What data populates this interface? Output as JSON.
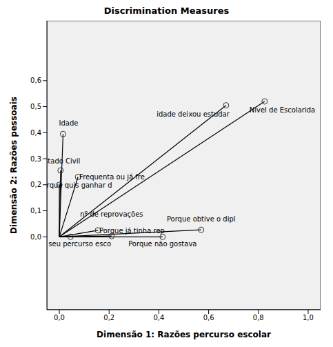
{
  "chart_data": {
    "type": "scatter",
    "title": "Discrimination Measures",
    "x_label": "Dimensão 1: Razões percurso escolar",
    "y_label": "Dimensão 2: Razões pessoais",
    "points": [
      {
        "label": "Idade",
        "x": 0.015,
        "y": 0.395
      },
      {
        "label": "Estado Civil",
        "x": 0.005,
        "y": 0.255
      },
      {
        "label": "Porque quis ganhar d",
        "x": 0.0,
        "y": 0.2
      },
      {
        "label": "Frequenta ou já fre",
        "x": 0.075,
        "y": 0.23
      },
      {
        "label": "idade deixou estudar",
        "x": 0.67,
        "y": 0.505
      },
      {
        "label": "Nível de Escolarida",
        "x": 0.825,
        "y": 0.52
      },
      {
        "label": "nº de reprovações",
        "x": 0.21,
        "y": 0.003
      },
      {
        "label": "Porque já tinha rep",
        "x": 0.155,
        "y": 0.025
      },
      {
        "label": "Porque obtive o dipl",
        "x": 0.57,
        "y": 0.027
      },
      {
        "label": "Porque não gostava",
        "x": 0.415,
        "y": 0.0
      },
      {
        "label": "No seu percurso esco",
        "x": 0.045,
        "y": 0.0
      }
    ],
    "xlim": [
      -0.05,
      1.05
    ],
    "ylim": [
      -0.28,
      0.83
    ],
    "xticks": [
      {
        "value": 0,
        "label": "0,0"
      },
      {
        "value": 0.2,
        "label": "0,2"
      },
      {
        "value": 0.4,
        "label": "0,4"
      },
      {
        "value": 0.6,
        "label": "0,6"
      },
      {
        "value": 0.8,
        "label": "0,8"
      },
      {
        "value": 1.0,
        "label": "1,0"
      }
    ],
    "yticks": [
      {
        "value": 0,
        "label": "0,0"
      },
      {
        "value": 0.1,
        "label": "0,1"
      },
      {
        "value": 0.2,
        "label": "0,2"
      },
      {
        "value": 0.3,
        "label": "0,3"
      },
      {
        "value": 0.4,
        "label": "0,4"
      },
      {
        "value": 0.5,
        "label": "0,5"
      },
      {
        "value": 0.6,
        "label": "0,6"
      }
    ],
    "grid": false,
    "marker": "circle",
    "color": "#333333"
  }
}
